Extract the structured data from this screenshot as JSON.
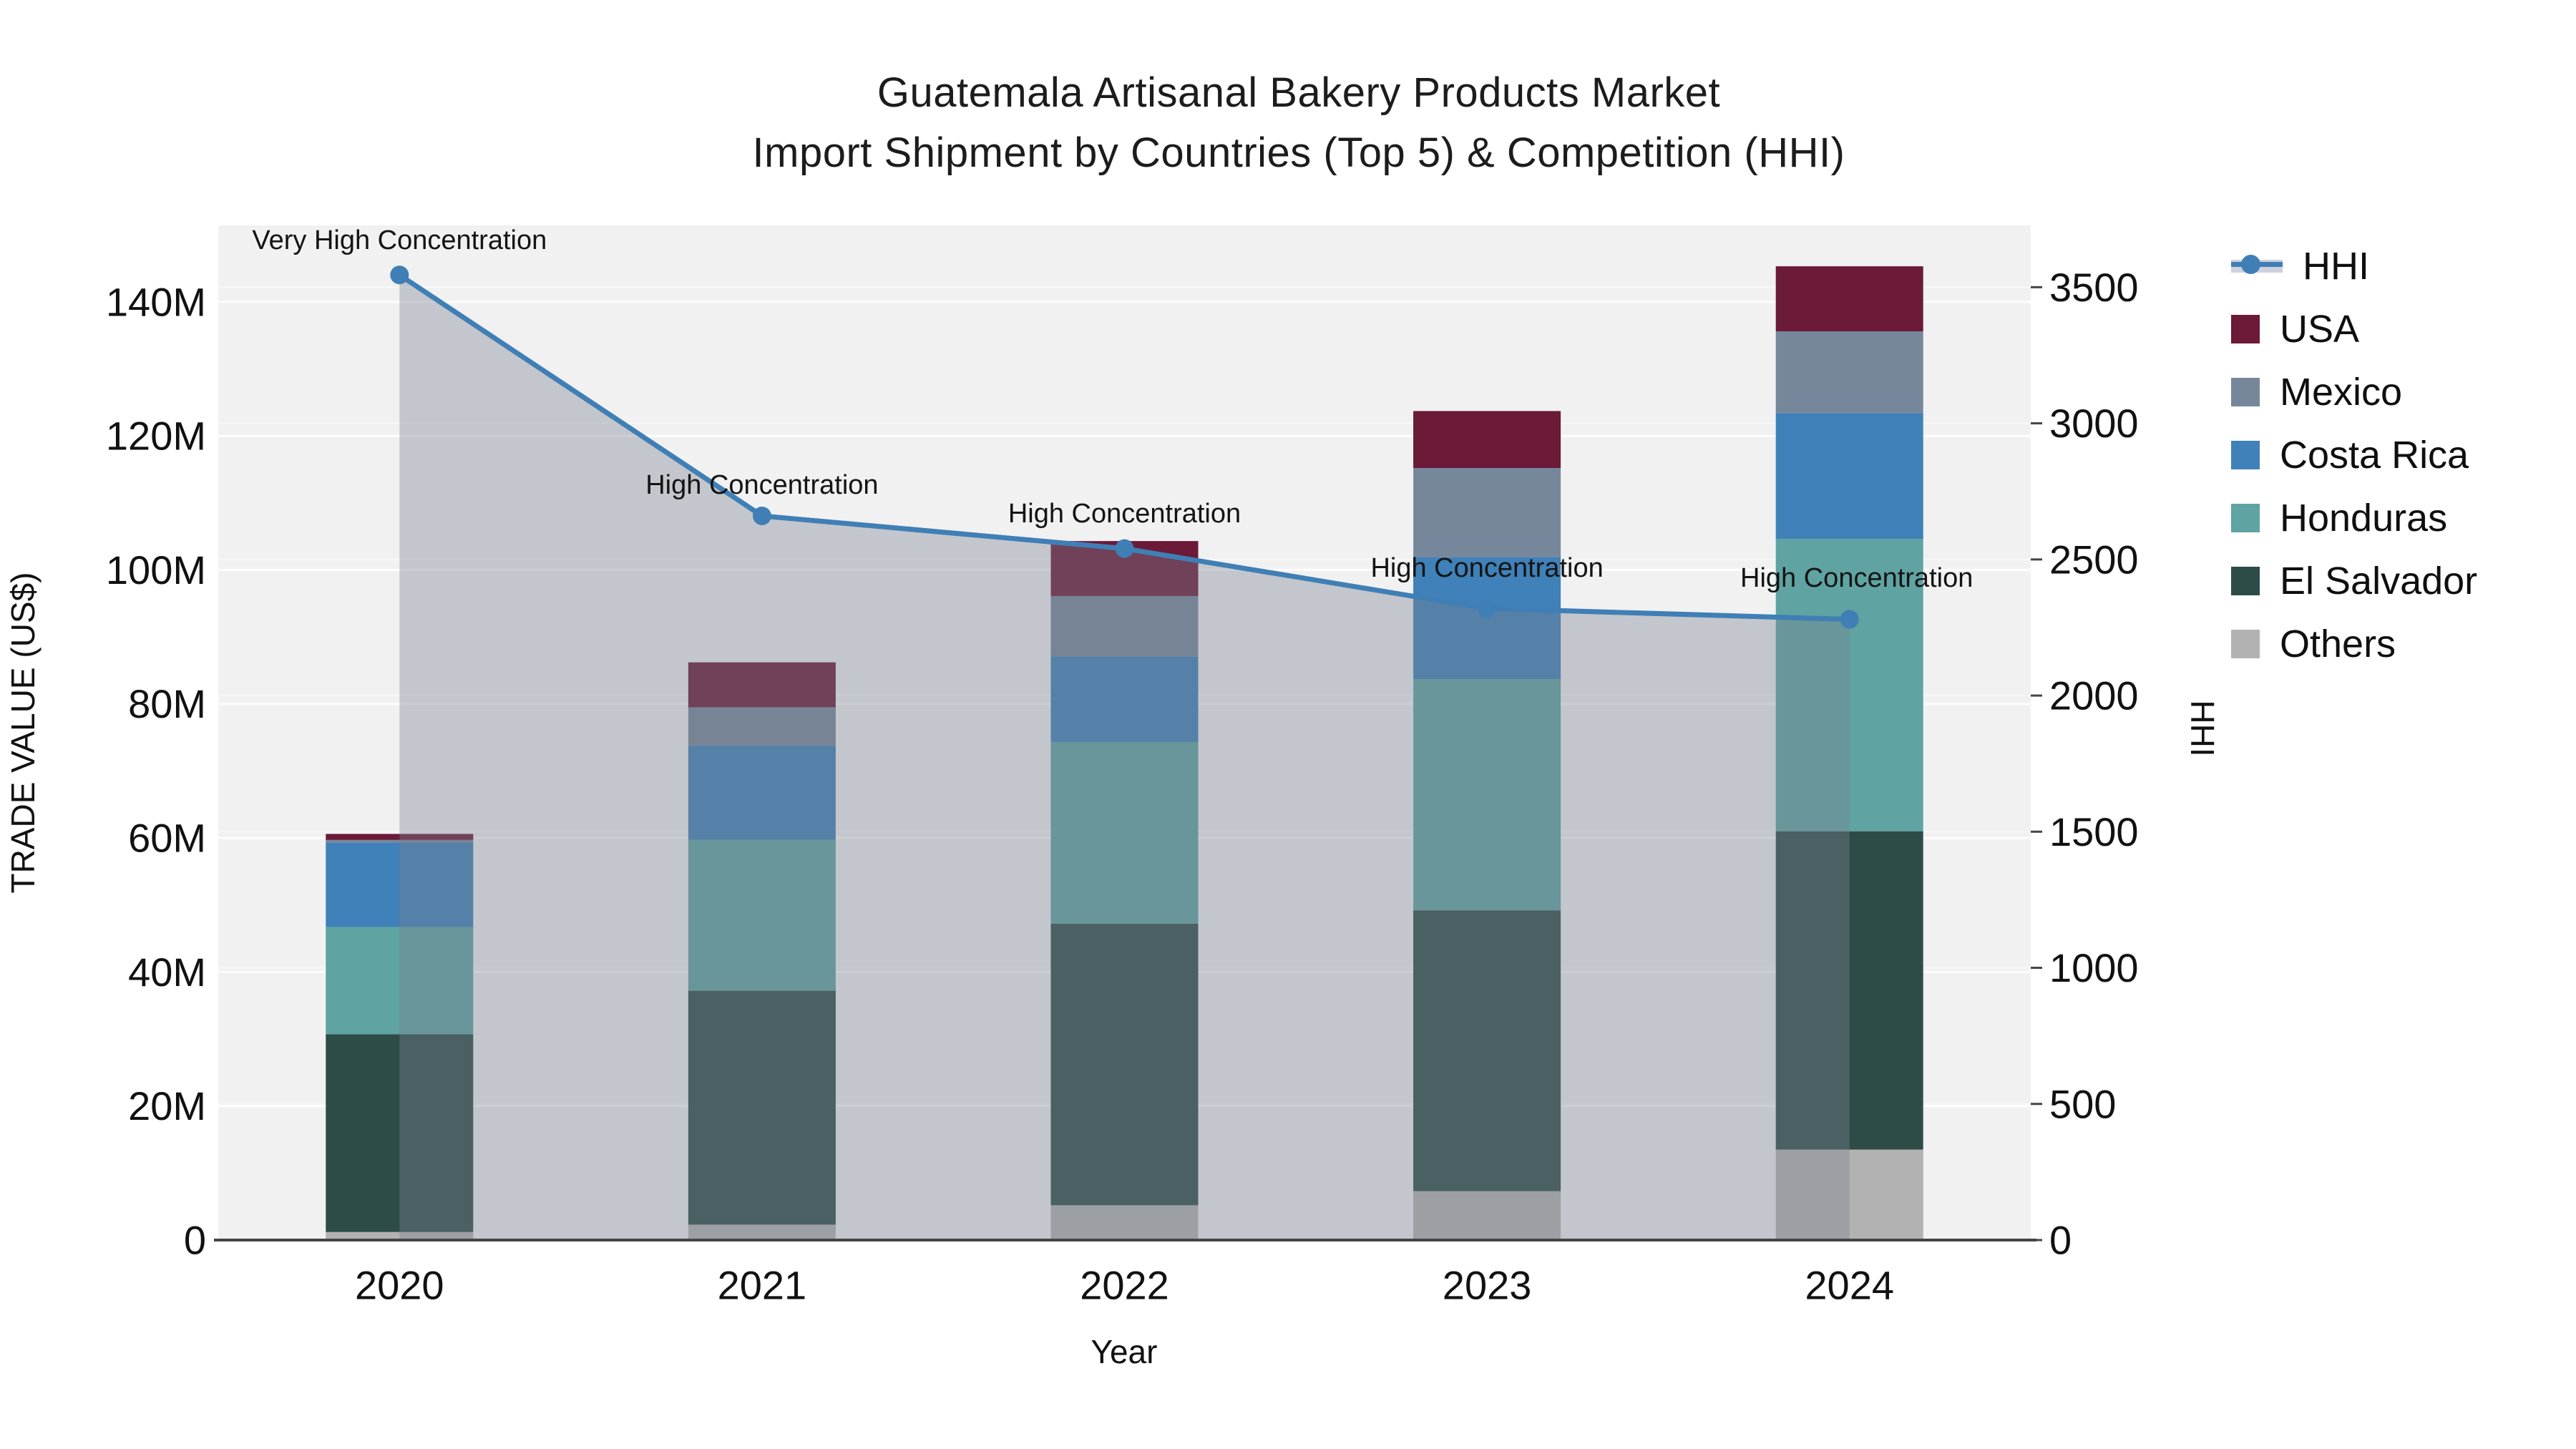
{
  "title": {
    "line1": "Guatemala Artisanal Bakery Products Market",
    "line2": "Import Shipment by Countries (Top 5) & Competition (HHI)"
  },
  "left_axis": {
    "title": "TRADE VALUE (US$)",
    "tick_labels": [
      "0",
      "20M",
      "40M",
      "60M",
      "80M",
      "100M",
      "120M",
      "140M"
    ],
    "tick_values": [
      0,
      20,
      40,
      60,
      80,
      100,
      120,
      140
    ],
    "max": 151.4
  },
  "right_axis": {
    "title": "HHI",
    "tick_labels": [
      "0",
      "500",
      "1000",
      "1500",
      "2000",
      "2500",
      "3000",
      "3500"
    ],
    "tick_values": [
      0,
      500,
      1000,
      1500,
      2000,
      2500,
      3000,
      3500
    ],
    "max": 3727
  },
  "x_axis": {
    "title": "Year"
  },
  "legend": {
    "items": [
      {
        "id": "hhi",
        "label": "HHI",
        "type": "line"
      },
      {
        "id": "usa",
        "label": "USA",
        "type": "box",
        "color": "#6b1a38"
      },
      {
        "id": "mexico",
        "label": "Mexico",
        "type": "box",
        "color": "#76879b"
      },
      {
        "id": "costa-rica",
        "label": "Costa Rica",
        "type": "box",
        "color": "#3f81b8"
      },
      {
        "id": "honduras",
        "label": "Honduras",
        "type": "box",
        "color": "#5fa3a2"
      },
      {
        "id": "el-salvador",
        "label": "El Salvador",
        "type": "box",
        "color": "#2e4c47"
      },
      {
        "id": "others",
        "label": "Others",
        "type": "box",
        "color": "#b2b2b2"
      }
    ]
  },
  "colors": {
    "usa": "#6b1a38",
    "mexico": "#76879b",
    "costa_rica": "#3f81b8",
    "honduras": "#5fa3a2",
    "el_salvador": "#2e4c47",
    "others": "#b2b2b2",
    "hhi_line": "#3f7fb5",
    "hhi_fill": "#78808e",
    "hhi_fill_opacity": 0.38,
    "plot_bg": "#f1f1f2",
    "grid": "#ffffff",
    "axis_line": "#454545",
    "text": "#111111"
  },
  "chart_data": {
    "type": "bar",
    "subtype": "stacked bars (left axis, trade value in millions US$) + line with markers and shaded area (right axis, HHI)",
    "categories": [
      "2020",
      "2021",
      "2022",
      "2023",
      "2024"
    ],
    "series": [
      {
        "name": "Others",
        "values": [
          1.2,
          2.3,
          5.2,
          7.3,
          13.5
        ]
      },
      {
        "name": "El Salvador",
        "values": [
          29.5,
          34.9,
          42.0,
          41.9,
          47.5
        ]
      },
      {
        "name": "Honduras",
        "values": [
          16.0,
          22.5,
          27.1,
          34.5,
          43.6
        ]
      },
      {
        "name": "Costa Rica",
        "values": [
          12.6,
          14.1,
          12.8,
          18.2,
          18.8
        ]
      },
      {
        "name": "Mexico",
        "values": [
          0.4,
          5.7,
          9.0,
          13.3,
          12.2
        ]
      },
      {
        "name": "USA",
        "values": [
          0.9,
          6.7,
          8.2,
          8.5,
          9.7
        ]
      }
    ],
    "bar_totals": [
      60.6,
      86.2,
      104.3,
      123.7,
      145.3
    ],
    "line_series": {
      "name": "HHI",
      "axis": "right",
      "values": [
        3545,
        2660,
        2540,
        2320,
        2280
      ]
    },
    "annotations": [
      {
        "x": "2020",
        "text": "Very High Concentration"
      },
      {
        "x": "2021",
        "text": "High Concentration"
      },
      {
        "x": "2022",
        "text": "High Concentration"
      },
      {
        "x": "2023",
        "text": "High Concentration"
      },
      {
        "x": "2024",
        "text": "High Concentration"
      }
    ],
    "xlabel": "Year",
    "ylabel": "TRADE VALUE (US$)",
    "ylabel_right": "HHI",
    "ylim_left": [
      0,
      151.4
    ],
    "ylim_right": [
      0,
      3727
    ],
    "grid": true,
    "legend_position": "right"
  }
}
